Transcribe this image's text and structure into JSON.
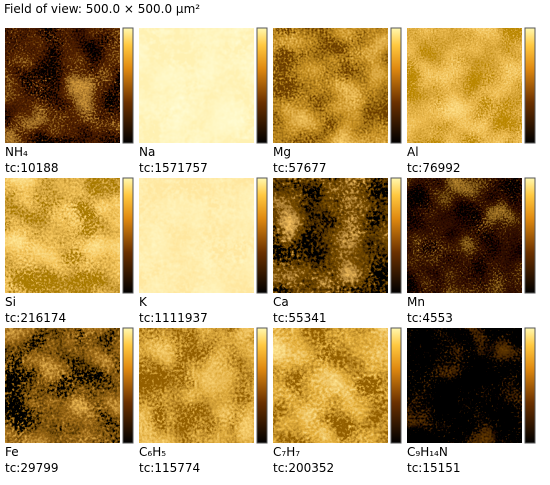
{
  "header": {
    "title": "Field of view: 500.0 × 500.0 µm²"
  },
  "panels": [
    {
      "label": "NH₄",
      "tc": "tc:10188"
    },
    {
      "label": "Na",
      "tc": "tc:1571757"
    },
    {
      "label": "Mg",
      "tc": "tc:57677"
    },
    {
      "label": "Al",
      "tc": "tc:76992"
    },
    {
      "label": "Si",
      "tc": "tc:216174"
    },
    {
      "label": "K",
      "tc": "tc:1111937"
    },
    {
      "label": "Ca",
      "tc": "tc:55341"
    },
    {
      "label": "Mn",
      "tc": "tc:4553"
    },
    {
      "label": "Fe",
      "tc": "tc:29799"
    },
    {
      "label": "C₆H₅",
      "tc": "tc:115774"
    },
    {
      "label": "C₇H₇",
      "tc": "tc:200352"
    },
    {
      "label": "C₉H₁₄N",
      "tc": "tc:15151"
    }
  ]
}
